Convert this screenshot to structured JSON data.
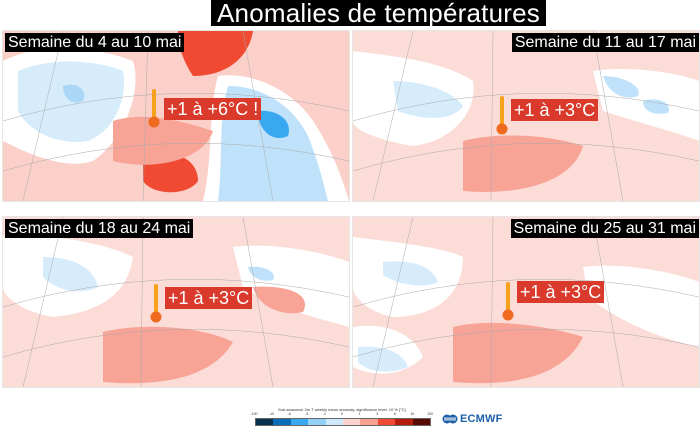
{
  "title": "Anomalies de températures",
  "panels": [
    {
      "week": "Semaine du 4 au 10 mai",
      "anomaly": "+1 à +6°C !",
      "label_side": "left",
      "dominant": "mixed-cold-east"
    },
    {
      "week": "Semaine du 11 au 17 mai",
      "anomaly": "+1 à +3°C",
      "label_side": "right",
      "dominant": "warm"
    },
    {
      "week": "Semaine du 18 au 24 mai",
      "anomaly": "+1 à +3°C",
      "label_side": "left",
      "dominant": "warm"
    },
    {
      "week": "Semaine du 25 au 31 mai",
      "anomaly": "+1 à +3°C",
      "label_side": "right",
      "dominant": "warm"
    }
  ],
  "legend": {
    "title": "Sub-seasonal: 2m T weekly mean anomaly, significance level: 10 % [°C]",
    "ticks": [
      "-100",
      "-10",
      "-6",
      "-3",
      "-1",
      "0",
      "1",
      "3",
      "6",
      "10",
      "100"
    ],
    "colors": [
      "#08304f",
      "#0a6fb8",
      "#3aa8f0",
      "#93d0f6",
      "#cde9fb",
      "#fdd3cf",
      "#f9a08f",
      "#f04a32",
      "#b51c0c",
      "#5a0a05"
    ]
  },
  "logo": {
    "text": "ECMWF",
    "icon": "ecmwf-logo-icon"
  },
  "icons": {
    "thermometer": "thermometer-icon"
  }
}
